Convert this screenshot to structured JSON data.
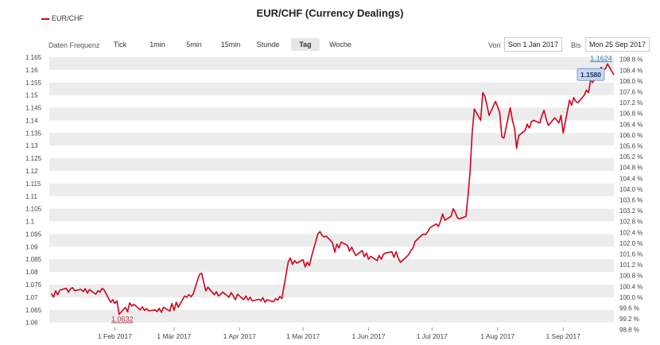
{
  "legend": {
    "label": "EUR/CHF"
  },
  "frequency": {
    "label": "Daten Frequenz",
    "buttons": [
      "Tick",
      "1min",
      "5min",
      "15min",
      "Stunde",
      "Tag",
      "Woche"
    ],
    "selected": "Tag"
  },
  "range": {
    "from_label": "Von",
    "from_value": "Son 1 Jan 2017",
    "to_label": "Bis",
    "to_value": "Mon 25 Sep 2017"
  },
  "colors": {
    "line": "#d0021b",
    "band": "#ececec",
    "label_box": "#c9d8f0"
  },
  "chart_data": {
    "type": "line",
    "title": "EUR/CHF (Currency Dealings)",
    "xlabel": "",
    "ylabel": "",
    "x_range": [
      "2017-01-01",
      "2017-09-25"
    ],
    "x_ticks": [
      {
        "date": "2017-02-01",
        "label": "1 Feb 2017"
      },
      {
        "date": "2017-03-01",
        "label": "1 Mär 2017"
      },
      {
        "date": "2017-04-01",
        "label": "1 Apr 2017"
      },
      {
        "date": "2017-05-01",
        "label": "1 Mai 2017"
      },
      {
        "date": "2017-06-01",
        "label": "1 Jun 2017"
      },
      {
        "date": "2017-07-01",
        "label": "1 Jul 2017"
      },
      {
        "date": "2017-08-01",
        "label": "1 Aug 2017"
      },
      {
        "date": "2017-09-01",
        "label": "1 Sep 2017"
      }
    ],
    "ylim": [
      1.058,
      1.165
    ],
    "y_ticks": [
      "1.165",
      "1.16",
      "1.155",
      "1.15",
      "1.145",
      "1.14",
      "1.135",
      "1.13",
      "1.125",
      "1.12",
      "1.115",
      "1.11",
      "1.105",
      "1.1",
      "1.095",
      "1.09",
      "1.085",
      "1.08",
      "1.075",
      "1.07",
      "1.065",
      "1.06"
    ],
    "y2_ticks": [
      "108.8 %",
      "108.4 %",
      "108.0 %",
      "107.6 %",
      "107.2 %",
      "106.8 %",
      "106.4 %",
      "106.0 %",
      "105.6 %",
      "105.2 %",
      "104.8 %",
      "104.4 %",
      "104.0 %",
      "103.6 %",
      "103.2 %",
      "102.8 %",
      "102.4 %",
      "102.0 %",
      "101.6 %",
      "101.2 %",
      "100.8 %",
      "100.4 %",
      "100.0 %",
      "99.6 %",
      "99.2 %",
      "98.8 %"
    ],
    "y2_base": 1.07,
    "grid": true,
    "legend_position": "top-left",
    "annotations": [
      {
        "text": "1.0632",
        "date": "2017-02-03",
        "value": 1.0632,
        "kind": "min"
      },
      {
        "text": "1.1624",
        "date": "2017-09-22",
        "value": 1.1624,
        "kind": "max"
      },
      {
        "text": "1.1580",
        "date": "2017-09-25",
        "value": 1.158,
        "kind": "last"
      }
    ],
    "series": [
      {
        "name": "EUR/CHF",
        "points": [
          [
            "2017-01-02",
            1.0715
          ],
          [
            "2017-01-03",
            1.07
          ],
          [
            "2017-01-04",
            1.0725
          ],
          [
            "2017-01-05",
            1.071
          ],
          [
            "2017-01-06",
            1.0728
          ],
          [
            "2017-01-09",
            1.0735
          ],
          [
            "2017-01-10",
            1.072
          ],
          [
            "2017-01-11",
            1.0733
          ],
          [
            "2017-01-12",
            1.0738
          ],
          [
            "2017-01-13",
            1.0726
          ],
          [
            "2017-01-16",
            1.0731
          ],
          [
            "2017-01-17",
            1.0722
          ],
          [
            "2017-01-18",
            1.0734
          ],
          [
            "2017-01-19",
            1.0716
          ],
          [
            "2017-01-20",
            1.073
          ],
          [
            "2017-01-23",
            1.0712
          ],
          [
            "2017-01-24",
            1.0726
          ],
          [
            "2017-01-25",
            1.072
          ],
          [
            "2017-01-26",
            1.0735
          ],
          [
            "2017-01-27",
            1.0728
          ],
          [
            "2017-01-30",
            1.068
          ],
          [
            "2017-01-31",
            1.069
          ],
          [
            "2017-02-01",
            1.0675
          ],
          [
            "2017-02-02",
            1.0686
          ],
          [
            "2017-02-03",
            1.0632
          ],
          [
            "2017-02-06",
            1.066
          ],
          [
            "2017-02-07",
            1.0642
          ],
          [
            "2017-02-08",
            1.0678
          ],
          [
            "2017-02-09",
            1.0665
          ],
          [
            "2017-02-10",
            1.0672
          ],
          [
            "2017-02-13",
            1.065
          ],
          [
            "2017-02-14",
            1.0662
          ],
          [
            "2017-02-15",
            1.0648
          ],
          [
            "2017-02-16",
            1.0655
          ],
          [
            "2017-02-17",
            1.0646
          ],
          [
            "2017-02-20",
            1.065
          ],
          [
            "2017-02-21",
            1.0643
          ],
          [
            "2017-02-22",
            1.0656
          ],
          [
            "2017-02-23",
            1.064
          ],
          [
            "2017-02-24",
            1.066
          ],
          [
            "2017-02-27",
            1.0645
          ],
          [
            "2017-02-28",
            1.0675
          ],
          [
            "2017-03-01",
            1.0648
          ],
          [
            "2017-03-02",
            1.068
          ],
          [
            "2017-03-03",
            1.066
          ],
          [
            "2017-03-06",
            1.0705
          ],
          [
            "2017-03-07",
            1.07
          ],
          [
            "2017-03-08",
            1.071
          ],
          [
            "2017-03-09",
            1.0702
          ],
          [
            "2017-03-10",
            1.0712
          ],
          [
            "2017-03-13",
            1.079
          ],
          [
            "2017-03-14",
            1.0795
          ],
          [
            "2017-03-15",
            1.076
          ],
          [
            "2017-03-16",
            1.0725
          ],
          [
            "2017-03-17",
            1.074
          ],
          [
            "2017-03-20",
            1.071
          ],
          [
            "2017-03-21",
            1.0722
          ],
          [
            "2017-03-22",
            1.0705
          ],
          [
            "2017-03-23",
            1.0712
          ],
          [
            "2017-03-24",
            1.072
          ],
          [
            "2017-03-27",
            1.07
          ],
          [
            "2017-03-28",
            1.0718
          ],
          [
            "2017-03-29",
            1.0705
          ],
          [
            "2017-03-30",
            1.069
          ],
          [
            "2017-03-31",
            1.0712
          ],
          [
            "2017-04-03",
            1.069
          ],
          [
            "2017-04-04",
            1.0705
          ],
          [
            "2017-04-05",
            1.0688
          ],
          [
            "2017-04-06",
            1.07
          ],
          [
            "2017-04-07",
            1.0685
          ],
          [
            "2017-04-10",
            1.0692
          ],
          [
            "2017-04-11",
            1.0686
          ],
          [
            "2017-04-12",
            1.0698
          ],
          [
            "2017-04-13",
            1.068
          ],
          [
            "2017-04-14",
            1.069
          ],
          [
            "2017-04-17",
            1.0682
          ],
          [
            "2017-04-18",
            1.0695
          ],
          [
            "2017-04-19",
            1.0688
          ],
          [
            "2017-04-20",
            1.0703
          ],
          [
            "2017-04-21",
            1.0695
          ],
          [
            "2017-04-24",
            1.084
          ],
          [
            "2017-04-25",
            1.0855
          ],
          [
            "2017-04-26",
            1.083
          ],
          [
            "2017-04-27",
            1.0845
          ],
          [
            "2017-04-28",
            1.0835
          ],
          [
            "2017-05-01",
            1.0848
          ],
          [
            "2017-05-02",
            1.082
          ],
          [
            "2017-05-03",
            1.0838
          ],
          [
            "2017-05-04",
            1.0825
          ],
          [
            "2017-05-05",
            1.086
          ],
          [
            "2017-05-08",
            1.095
          ],
          [
            "2017-05-09",
            1.096
          ],
          [
            "2017-05-10",
            1.0945
          ],
          [
            "2017-05-11",
            1.0938
          ],
          [
            "2017-05-12",
            1.0942
          ],
          [
            "2017-05-15",
            1.0915
          ],
          [
            "2017-05-16",
            1.0878
          ],
          [
            "2017-05-17",
            1.091
          ],
          [
            "2017-05-18",
            1.0895
          ],
          [
            "2017-05-19",
            1.0918
          ],
          [
            "2017-05-22",
            1.0905
          ],
          [
            "2017-05-23",
            1.0882
          ],
          [
            "2017-05-24",
            1.0898
          ],
          [
            "2017-05-25",
            1.088
          ],
          [
            "2017-05-26",
            1.0865
          ],
          [
            "2017-05-29",
            1.0885
          ],
          [
            "2017-05-30",
            1.086
          ],
          [
            "2017-05-31",
            1.0875
          ],
          [
            "2017-06-01",
            1.085
          ],
          [
            "2017-06-02",
            1.0862
          ],
          [
            "2017-06-05",
            1.0845
          ],
          [
            "2017-06-06",
            1.0865
          ],
          [
            "2017-06-07",
            1.085
          ],
          [
            "2017-06-08",
            1.087
          ],
          [
            "2017-06-09",
            1.0875
          ],
          [
            "2017-06-12",
            1.088
          ],
          [
            "2017-06-13",
            1.0858
          ],
          [
            "2017-06-14",
            1.088
          ],
          [
            "2017-06-15",
            1.0855
          ],
          [
            "2017-06-16",
            1.0838
          ],
          [
            "2017-06-19",
            1.086
          ],
          [
            "2017-06-20",
            1.087
          ],
          [
            "2017-06-21",
            1.0885
          ],
          [
            "2017-06-22",
            1.0895
          ],
          [
            "2017-06-23",
            1.092
          ],
          [
            "2017-06-26",
            1.0945
          ],
          [
            "2017-06-27",
            1.095
          ],
          [
            "2017-06-28",
            1.0948
          ],
          [
            "2017-06-29",
            1.096
          ],
          [
            "2017-06-30",
            1.0975
          ],
          [
            "2017-07-03",
            1.099
          ],
          [
            "2017-07-04",
            1.098
          ],
          [
            "2017-07-05",
            1.1
          ],
          [
            "2017-07-06",
            1.103
          ],
          [
            "2017-07-07",
            1.1005
          ],
          [
            "2017-07-10",
            1.102
          ],
          [
            "2017-07-11",
            1.105
          ],
          [
            "2017-07-12",
            1.1035
          ],
          [
            "2017-07-13",
            1.1015
          ],
          [
            "2017-07-14",
            1.101
          ],
          [
            "2017-07-17",
            1.102
          ],
          [
            "2017-07-18",
            1.11
          ],
          [
            "2017-07-19",
            1.12
          ],
          [
            "2017-07-20",
            1.135
          ],
          [
            "2017-07-21",
            1.1445
          ],
          [
            "2017-07-24",
            1.14
          ],
          [
            "2017-07-25",
            1.151
          ],
          [
            "2017-07-26",
            1.1495
          ],
          [
            "2017-07-27",
            1.146
          ],
          [
            "2017-07-28",
            1.142
          ],
          [
            "2017-07-31",
            1.1475
          ],
          [
            "2017-08-01",
            1.1455
          ],
          [
            "2017-08-02",
            1.143
          ],
          [
            "2017-08-03",
            1.1335
          ],
          [
            "2017-08-04",
            1.133
          ],
          [
            "2017-08-07",
            1.145
          ],
          [
            "2017-08-08",
            1.14
          ],
          [
            "2017-08-09",
            1.137
          ],
          [
            "2017-08-10",
            1.129
          ],
          [
            "2017-08-11",
            1.134
          ],
          [
            "2017-08-14",
            1.136
          ],
          [
            "2017-08-15",
            1.1385
          ],
          [
            "2017-08-16",
            1.137
          ],
          [
            "2017-08-17",
            1.1395
          ],
          [
            "2017-08-18",
            1.14
          ],
          [
            "2017-08-21",
            1.139
          ],
          [
            "2017-08-22",
            1.142
          ],
          [
            "2017-08-23",
            1.144
          ],
          [
            "2017-08-24",
            1.1405
          ],
          [
            "2017-08-25",
            1.138
          ],
          [
            "2017-08-28",
            1.141
          ],
          [
            "2017-08-29",
            1.14
          ],
          [
            "2017-08-30",
            1.139
          ],
          [
            "2017-08-31",
            1.142
          ],
          [
            "2017-09-01",
            1.135
          ],
          [
            "2017-09-04",
            1.148
          ],
          [
            "2017-09-05",
            1.146
          ],
          [
            "2017-09-06",
            1.149
          ],
          [
            "2017-09-07",
            1.1475
          ],
          [
            "2017-09-08",
            1.147
          ],
          [
            "2017-09-11",
            1.15
          ],
          [
            "2017-09-12",
            1.152
          ],
          [
            "2017-09-13",
            1.151
          ],
          [
            "2017-09-14",
            1.156
          ],
          [
            "2017-09-15",
            1.155
          ],
          [
            "2017-09-18",
            1.159
          ],
          [
            "2017-09-19",
            1.161
          ],
          [
            "2017-09-20",
            1.16
          ],
          [
            "2017-09-21",
            1.1605
          ],
          [
            "2017-09-22",
            1.1624
          ],
          [
            "2017-09-25",
            1.158
          ]
        ]
      }
    ]
  }
}
